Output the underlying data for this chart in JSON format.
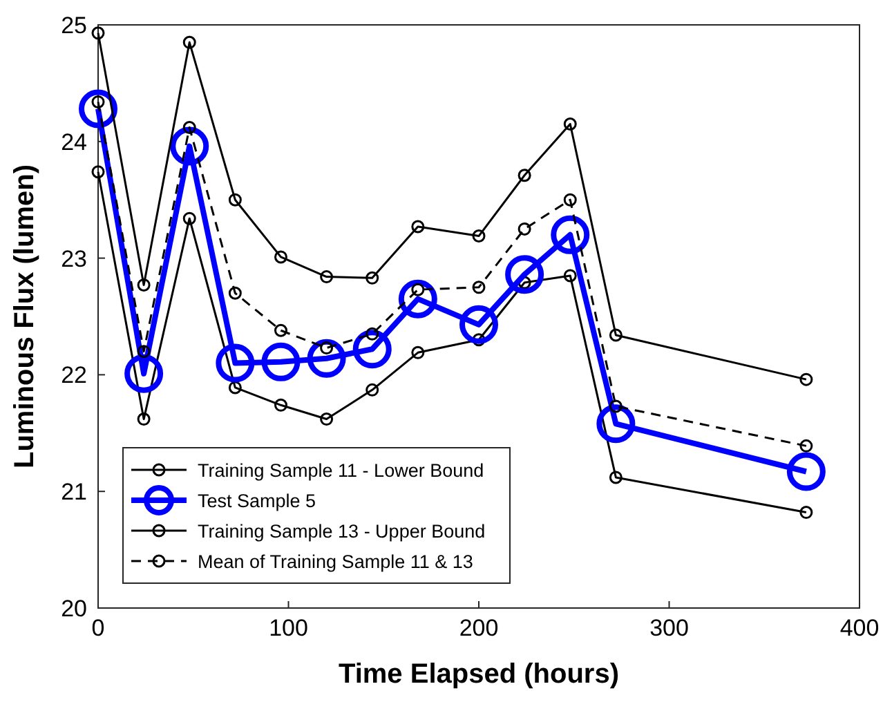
{
  "chart_data": {
    "type": "line",
    "xlabel": "Time Elapsed (hours)",
    "ylabel": "Luminous Flux (lumen)",
    "x": [
      0,
      24,
      48,
      72,
      96,
      120,
      144,
      168,
      200,
      224,
      248,
      272,
      372
    ],
    "xlim": [
      0,
      400
    ],
    "xticks": [
      0,
      100,
      200,
      300,
      400
    ],
    "ylim": [
      20,
      25
    ],
    "yticks": [
      20,
      21,
      22,
      23,
      24,
      25
    ],
    "grid": false,
    "legend": "bottom left",
    "marker": "circle",
    "series": [
      {
        "name": "Training Sample 11 - Lower Bound",
        "color": "#000000",
        "line_style": "solid",
        "values": [
          23.74,
          21.62,
          23.34,
          21.89,
          21.74,
          21.62,
          21.87,
          22.19,
          22.3,
          22.79,
          22.85,
          21.12,
          20.82
        ]
      },
      {
        "name": "Test Sample 5",
        "color": "#0000ff",
        "line_style": "solid",
        "values": [
          24.28,
          22.01,
          23.96,
          22.1,
          22.11,
          22.14,
          22.22,
          22.65,
          22.43,
          22.86,
          23.2,
          21.58,
          21.17
        ]
      },
      {
        "name": "Training Sample 13 - Upper Bound",
        "color": "#000000",
        "line_style": "solid",
        "values": [
          24.93,
          22.77,
          24.85,
          23.5,
          23.01,
          22.84,
          22.83,
          23.27,
          23.19,
          23.71,
          24.15,
          22.34,
          21.96
        ]
      },
      {
        "name": "Mean of Training Sample 11 & 13",
        "color": "#000000",
        "line_style": "dashed",
        "values": [
          24.34,
          22.2,
          24.12,
          22.7,
          22.38,
          22.23,
          22.35,
          22.73,
          22.75,
          23.25,
          23.5,
          21.73,
          21.39
        ]
      }
    ]
  }
}
